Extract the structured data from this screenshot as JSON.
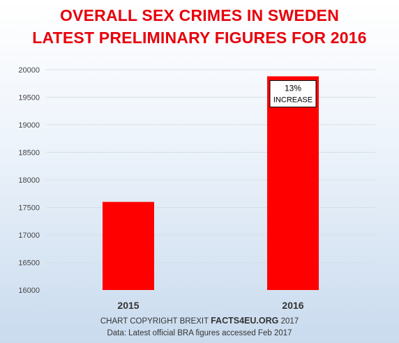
{
  "header": {
    "title_line1": "OVERALL SEX CRIMES IN SWEDEN",
    "title_line2": "LATEST PRELIMINARY FIGURES FOR 2016"
  },
  "footer": {
    "copyright_prefix": "CHART COPYRIGHT BREXIT",
    "copyright_brand": "FACTS4EU.ORG",
    "copyright_year": "2017",
    "source_note": "Data: Latest official BRA figures accessed Feb 2017"
  },
  "chart_data": {
    "type": "bar",
    "title": "OVERALL SEX CRIMES IN SWEDEN",
    "subtitle": "LATEST PRELIMINARY FIGURES FOR 2016",
    "categories": [
      "2015",
      "2016"
    ],
    "values": [
      17600,
      19880
    ],
    "ylim": [
      16000,
      20000
    ],
    "yticks": [
      16000,
      16500,
      17000,
      17500,
      18000,
      18500,
      19000,
      19500,
      20000
    ],
    "xlabel": "",
    "ylabel": "",
    "grid": true,
    "legend": "none",
    "bar_color": "#ff0000",
    "annotation": {
      "category": "2016",
      "line1": "13%",
      "line2": "INCREASE"
    }
  }
}
